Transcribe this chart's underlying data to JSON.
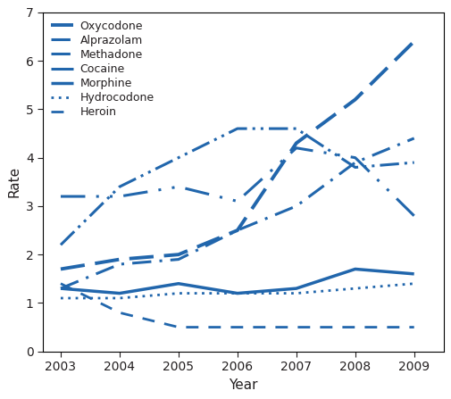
{
  "years": [
    2003,
    2004,
    2005,
    2006,
    2007,
    2008,
    2009
  ],
  "series": {
    "Oxycodone": [
      1.7,
      1.9,
      2.0,
      2.5,
      4.3,
      5.2,
      6.4
    ],
    "Alprazolam": [
      1.3,
      1.8,
      1.9,
      2.5,
      3.0,
      3.9,
      4.4
    ],
    "Methadone": [
      2.2,
      3.4,
      4.0,
      4.6,
      4.6,
      3.8,
      3.9
    ],
    "Cocaine": [
      3.2,
      3.2,
      3.4,
      3.1,
      4.2,
      4.0,
      2.8
    ],
    "Morphine": [
      1.3,
      1.2,
      1.4,
      1.2,
      1.3,
      1.7,
      1.6
    ],
    "Hydrocodone": [
      1.1,
      1.1,
      1.2,
      1.2,
      1.2,
      1.3,
      1.4
    ],
    "Heroin": [
      1.4,
      0.8,
      0.5,
      0.5,
      0.5,
      0.5,
      0.5
    ]
  },
  "series_order": [
    "Oxycodone",
    "Alprazolam",
    "Methadone",
    "Cocaine",
    "Morphine",
    "Hydrocodone",
    "Heroin"
  ],
  "ylim": [
    0,
    7
  ],
  "yticks": [
    0,
    1,
    2,
    3,
    4,
    5,
    6,
    7
  ],
  "xlabel": "Year",
  "ylabel": "Rate",
  "line_color": "#2166ac",
  "text_color": "#231f20",
  "background": "#ffffff",
  "legend_fontsize": 9,
  "axis_fontsize": 11,
  "tick_fontsize": 10
}
